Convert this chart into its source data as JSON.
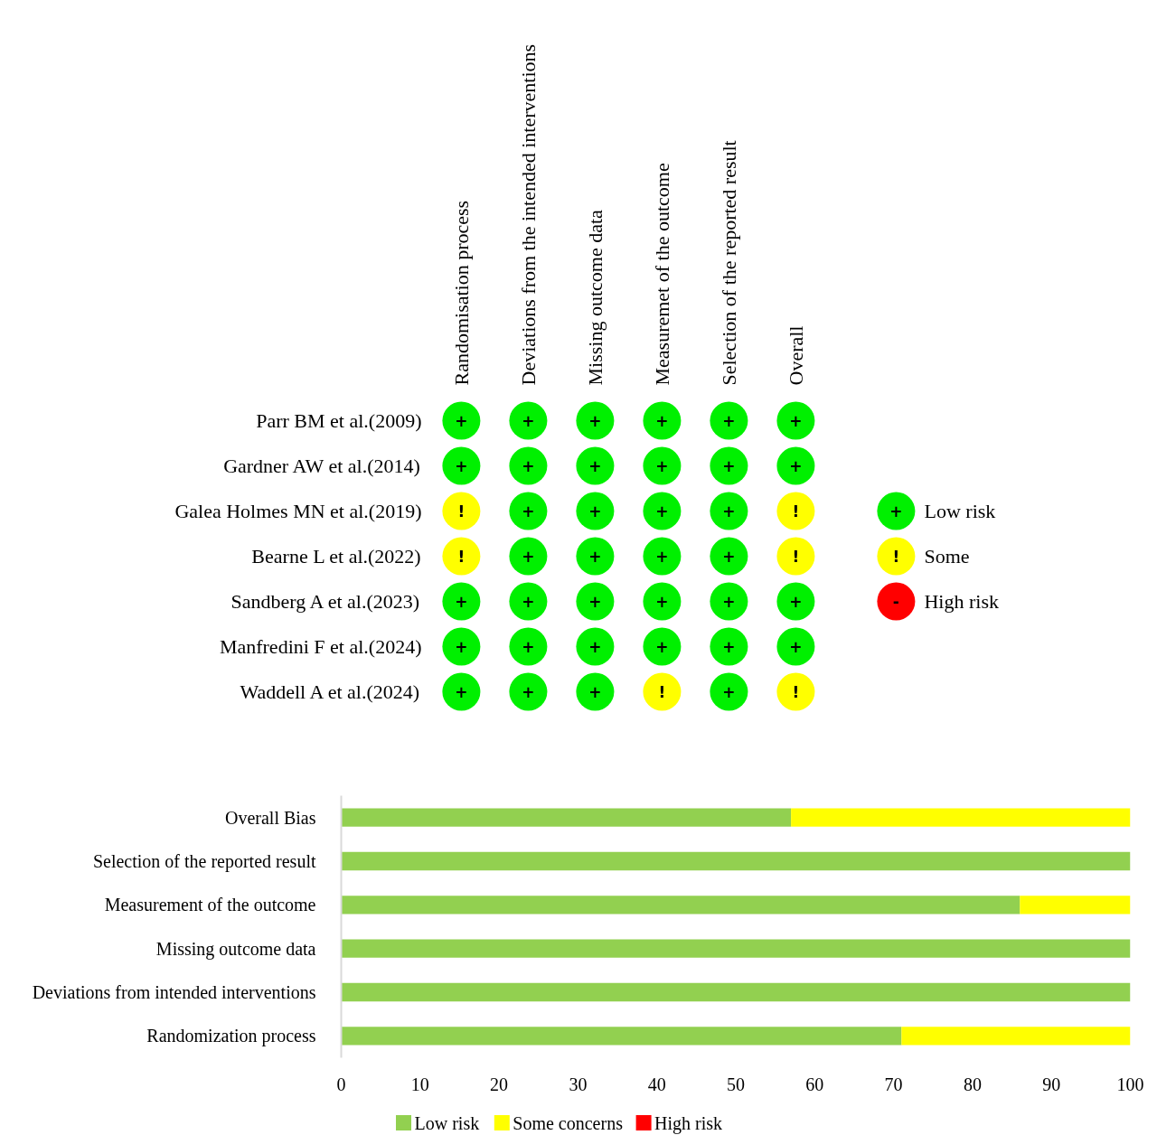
{
  "chart_data": [
    {
      "type": "heatmap",
      "categories": [
        "Randomisation process",
        "Deviations from the intended interventions",
        "Missing outcome data",
        "Measuremet of the outcome",
        "Selection of the reported result",
        "Overall"
      ],
      "y_categories": [
        "Parr BM et al.(2009)",
        "Gardner AW et al.(2014)",
        "Galea Holmes MN et al.(2019)",
        "Bearne L et al.(2022)",
        "Sandberg A et al.(2023)",
        "Manfredini F et al.(2024)",
        "Waddell A et al.(2024)"
      ],
      "cells": [
        [
          "+",
          "+",
          "+",
          "+",
          "+",
          "+"
        ],
        [
          "+",
          "+",
          "+",
          "+",
          "+",
          "+"
        ],
        [
          "!",
          "+",
          "+",
          "+",
          "+",
          "!"
        ],
        [
          "!",
          "+",
          "+",
          "+",
          "+",
          "!"
        ],
        [
          "+",
          "+",
          "+",
          "+",
          "+",
          "+"
        ],
        [
          "+",
          "+",
          "+",
          "+",
          "+",
          "+"
        ],
        [
          "+",
          "+",
          "+",
          "!",
          "+",
          "!"
        ]
      ],
      "cticks": [
        {
          "value": "+",
          "label": "Low risk"
        },
        {
          "value": "!",
          "label": "Some"
        },
        {
          "value": "-",
          "label": "High risk"
        }
      ],
      "colors": [
        "#00f000",
        "#ffff00",
        "#ff0000"
      ]
    },
    {
      "type": "bar",
      "orientation": "horizontal",
      "stacked": true,
      "categories": [
        "Overall Bias",
        "Selection of the reported result",
        "Measurement of the outcome",
        "Missing outcome data",
        "Deviations from intended interventions",
        "Randomization process"
      ],
      "series": [
        {
          "name": "Low risk",
          "color": "#92d050",
          "values": [
            57,
            100,
            86,
            100,
            100,
            71
          ]
        },
        {
          "name": "Some concerns",
          "color": "#ffff00",
          "values": [
            43,
            0,
            14,
            0,
            0,
            29
          ]
        },
        {
          "name": "High risk",
          "color": "#ff0000",
          "values": [
            0,
            0,
            0,
            0,
            0,
            0
          ]
        }
      ],
      "xlim": [
        0,
        100
      ],
      "xticks": [
        0,
        10,
        20,
        30,
        40,
        50,
        60,
        70,
        80,
        90,
        100
      ],
      "legend": "bottom"
    }
  ]
}
